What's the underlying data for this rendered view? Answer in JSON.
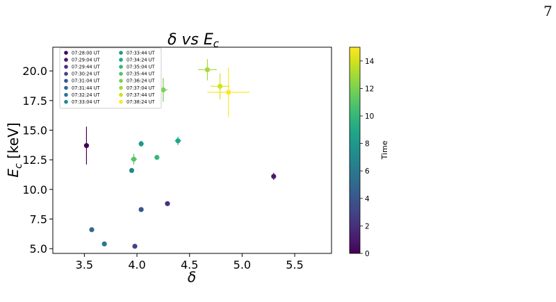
{
  "page": {
    "number": "7"
  },
  "chart_data": {
    "type": "scatter",
    "title_prefix": "δ vs E",
    "title_sub": "c",
    "xlabel": "δ",
    "ylabel_main": "E",
    "ylabel_sub": "c",
    "ylabel_unit": " [keV]",
    "xlim": [
      3.2,
      5.85
    ],
    "ylim": [
      4.6,
      22.0
    ],
    "xticks": [
      3.5,
      4.0,
      4.5,
      5.0,
      5.5
    ],
    "xtick_labels": [
      "3.5",
      "4.0",
      "4.5",
      "5.0",
      "5.5"
    ],
    "yticks": [
      5.0,
      7.5,
      10.0,
      12.5,
      15.0,
      17.5,
      20.0
    ],
    "ytick_labels": [
      "5.0",
      "7.5",
      "10.0",
      "12.5",
      "15.0",
      "17.5",
      "20.0"
    ],
    "grid": false,
    "legend_placement": "upper-left",
    "colorbar": {
      "label": "Time",
      "colormap": "viridis",
      "range": [
        0,
        15
      ],
      "ticks": [
        0,
        2,
        4,
        6,
        8,
        10,
        12,
        14
      ],
      "tick_labels": [
        "0",
        "2",
        "4",
        "6",
        "8",
        "10",
        "12",
        "14"
      ]
    },
    "points": [
      {
        "label": "07:28:00 UT",
        "t": 0,
        "color": "#440154",
        "x": 3.52,
        "y": 13.7,
        "xerr": 0.0,
        "yerr": 1.6
      },
      {
        "label": "07:29:04 UT",
        "t": 1,
        "color": "#481a6c",
        "x": 5.3,
        "y": 11.1,
        "xerr": 0.02,
        "yerr": 0.3
      },
      {
        "label": "07:29:44 UT",
        "t": 2,
        "color": "#472f7d",
        "x": 4.29,
        "y": 8.8,
        "xerr": 0.0,
        "yerr": 0.0
      },
      {
        "label": "07:30:24 UT",
        "t": 3,
        "color": "#414487",
        "x": 3.98,
        "y": 5.2,
        "xerr": 0.0,
        "yerr": 0.0
      },
      {
        "label": "07:31:04 UT",
        "t": 4,
        "color": "#39568c",
        "x": 4.04,
        "y": 8.3,
        "xerr": 0.0,
        "yerr": 0.0
      },
      {
        "label": "07:31:44 UT",
        "t": 5,
        "color": "#31688e",
        "x": 3.57,
        "y": 6.6,
        "xerr": 0.0,
        "yerr": 0.0
      },
      {
        "label": "07:32:24 UT",
        "t": 6,
        "color": "#2a788e",
        "x": 3.69,
        "y": 5.4,
        "xerr": 0.0,
        "yerr": 0.0
      },
      {
        "label": "07:33:04 UT",
        "t": 7,
        "color": "#23888e",
        "x": 3.95,
        "y": 11.6,
        "xerr": 0.0,
        "yerr": 0.0
      },
      {
        "label": "07:33:44 UT",
        "t": 8,
        "color": "#1f988b",
        "x": 4.04,
        "y": 13.85,
        "xerr": 0.02,
        "yerr": 0.25
      },
      {
        "label": "07:34:24 UT",
        "t": 9,
        "color": "#22a884",
        "x": 4.39,
        "y": 14.1,
        "xerr": 0.03,
        "yerr": 0.35
      },
      {
        "label": "07:35:04 UT",
        "t": 10,
        "color": "#35b779",
        "x": 4.19,
        "y": 12.7,
        "xerr": 0.02,
        "yerr": 0.2
      },
      {
        "label": "07:35:44 UT",
        "t": 11,
        "color": "#54c568",
        "x": 3.97,
        "y": 12.55,
        "xerr": 0.03,
        "yerr": 0.45
      },
      {
        "label": "07:36:24 UT",
        "t": 12,
        "color": "#7ad151",
        "x": 4.25,
        "y": 18.4,
        "xerr": 0.04,
        "yerr": 1.0
      },
      {
        "label": "07:37:04 UT",
        "t": 13,
        "color": "#a5db36",
        "x": 4.67,
        "y": 20.1,
        "xerr": 0.09,
        "yerr": 0.9
      },
      {
        "label": "07:37:44 UT",
        "t": 14,
        "color": "#d2e21b",
        "x": 4.79,
        "y": 18.7,
        "xerr": 0.09,
        "yerr": 1.1
      },
      {
        "label": "07:38:24 UT",
        "t": 15,
        "color": "#fde725",
        "x": 4.87,
        "y": 18.2,
        "xerr": 0.2,
        "yerr": 2.1
      }
    ]
  }
}
